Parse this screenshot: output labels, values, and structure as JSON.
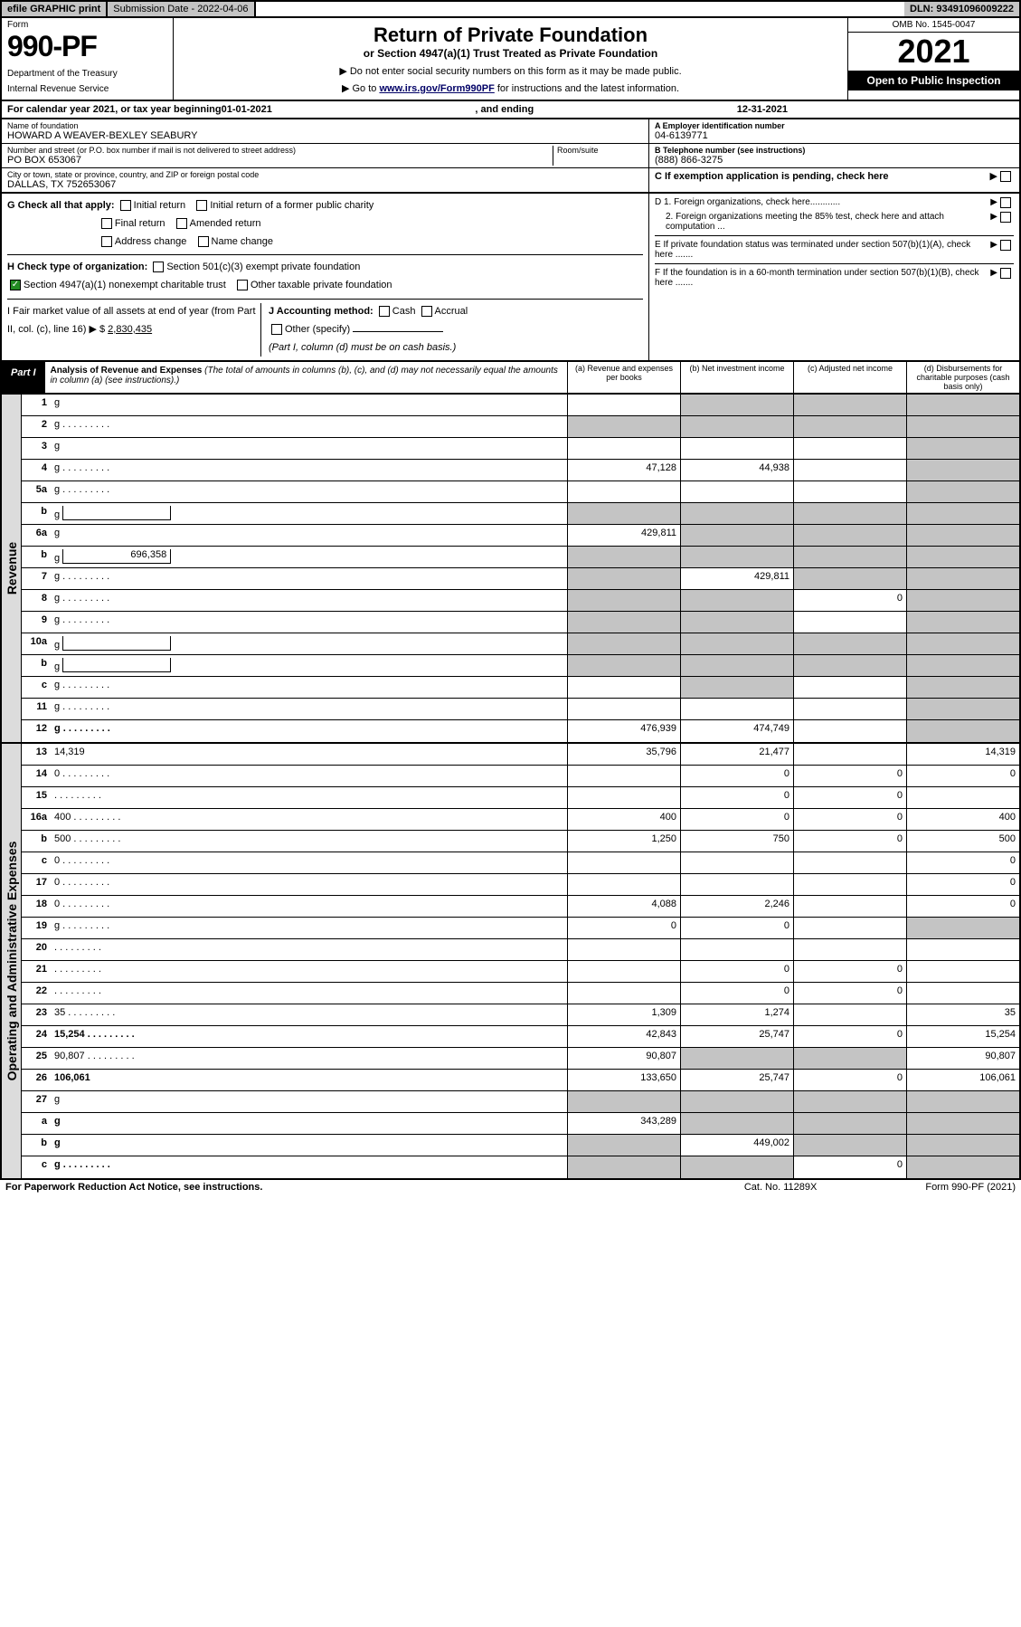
{
  "top": {
    "efile": "efile GRAPHIC print",
    "sub_label": "Submission Date - 2022-04-06",
    "dln": "DLN: 93491096009222"
  },
  "header": {
    "form": "Form",
    "num": "990-PF",
    "dept": "Department of the Treasury",
    "irs": "Internal Revenue Service",
    "title": "Return of Private Foundation",
    "subtitle": "or Section 4947(a)(1) Trust Treated as Private Foundation",
    "note1": "▶ Do not enter social security numbers on this form as it may be made public.",
    "note2_pre": "▶ Go to ",
    "note2_link": "www.irs.gov/Form990PF",
    "note2_post": " for instructions and the latest information.",
    "omb": "OMB No. 1545-0047",
    "year": "2021",
    "open": "Open to Public Inspection"
  },
  "cal": {
    "pre": "For calendar year 2021, or tax year beginning ",
    "begin": "01-01-2021",
    "mid": " , and ending ",
    "end": "12-31-2021"
  },
  "info_left": {
    "name_lbl": "Name of foundation",
    "name": "HOWARD A WEAVER-BEXLEY SEABURY",
    "addr_lbl": "Number and street (or P.O. box number if mail is not delivered to street address)",
    "addr": "PO BOX 653067",
    "room_lbl": "Room/suite",
    "city_lbl": "City or town, state or province, country, and ZIP or foreign postal code",
    "city": "DALLAS, TX  752653067"
  },
  "info_right": {
    "a_lbl": "A Employer identification number",
    "a_val": "04-6139771",
    "b_lbl": "B Telephone number (see instructions)",
    "b_val": "(888) 866-3275",
    "c_lbl": "C If exemption application is pending, check here",
    "d1": "D 1. Foreign organizations, check here............",
    "d2": "2. Foreign organizations meeting the 85% test, check here and attach computation ...",
    "e": "E If private foundation status was terminated under section 507(b)(1)(A), check here .......",
    "f": "F If the foundation is in a 60-month termination under section 507(b)(1)(B), check here ......."
  },
  "g": {
    "label": "G Check all that apply:",
    "o1": "Initial return",
    "o2": "Initial return of a former public charity",
    "o3": "Final return",
    "o4": "Amended return",
    "o5": "Address change",
    "o6": "Name change"
  },
  "h": {
    "label": "H Check type of organization:",
    "o1": "Section 501(c)(3) exempt private foundation",
    "o2": "Section 4947(a)(1) nonexempt charitable trust",
    "o3": "Other taxable private foundation"
  },
  "i": {
    "label": "I Fair market value of all assets at end of year (from Part II, col. (c), line 16) ▶ $",
    "val": "2,830,435"
  },
  "j": {
    "label": "J Accounting method:",
    "o1": "Cash",
    "o2": "Accrual",
    "o3": "Other (specify)",
    "note": "(Part I, column (d) must be on cash basis.)"
  },
  "part1": {
    "tag": "Part I",
    "title": "Analysis of Revenue and Expenses",
    "note": "(The total of amounts in columns (b), (c), and (d) may not necessarily equal the amounts in column (a) (see instructions).)",
    "col_a": "(a) Revenue and expenses per books",
    "col_b": "(b) Net investment income",
    "col_c": "(c) Adjusted net income",
    "col_d": "(d) Disbursements for charitable purposes (cash basis only)"
  },
  "side_rev": "Revenue",
  "side_exp": "Operating and Administrative Expenses",
  "rows_rev": [
    {
      "n": "1",
      "d": "g",
      "a": "",
      "b": "g",
      "c": "g"
    },
    {
      "n": "2",
      "d": "g",
      "a": "g",
      "b": "g",
      "c": "g",
      "bold": false,
      "dots": true
    },
    {
      "n": "3",
      "d": "g",
      "a": "",
      "b": "",
      "c": ""
    },
    {
      "n": "4",
      "d": "g",
      "a": "47,128",
      "b": "44,938",
      "c": "",
      "dots": true
    },
    {
      "n": "5a",
      "d": "g",
      "a": "",
      "b": "",
      "c": "",
      "dots": true
    },
    {
      "n": "b",
      "d": "g",
      "a": "g",
      "b": "g",
      "c": "g",
      "subbox": ""
    },
    {
      "n": "6a",
      "d": "g",
      "a": "429,811",
      "b": "g",
      "c": "g"
    },
    {
      "n": "b",
      "d": "g",
      "a": "g",
      "b": "g",
      "c": "g",
      "subbox": "696,358"
    },
    {
      "n": "7",
      "d": "g",
      "a": "g",
      "b": "429,811",
      "c": "g",
      "dots": true
    },
    {
      "n": "8",
      "d": "g",
      "a": "g",
      "b": "g",
      "c": "0",
      "dots": true
    },
    {
      "n": "9",
      "d": "g",
      "a": "g",
      "b": "g",
      "c": "",
      "dots": true
    },
    {
      "n": "10a",
      "d": "g",
      "a": "g",
      "b": "g",
      "c": "g",
      "subbox": ""
    },
    {
      "n": "b",
      "d": "g",
      "a": "g",
      "b": "g",
      "c": "g",
      "subbox": "",
      "dots": true
    },
    {
      "n": "c",
      "d": "g",
      "a": "",
      "b": "g",
      "c": "",
      "dots": true
    },
    {
      "n": "11",
      "d": "g",
      "a": "",
      "b": "",
      "c": "",
      "dots": true
    },
    {
      "n": "12",
      "d": "g",
      "a": "476,939",
      "b": "474,749",
      "c": "",
      "bold": true,
      "dots": true
    }
  ],
  "rows_exp": [
    {
      "n": "13",
      "d": "14,319",
      "a": "35,796",
      "b": "21,477",
      "c": ""
    },
    {
      "n": "14",
      "d": "0",
      "a": "",
      "b": "0",
      "c": "0",
      "dots": true
    },
    {
      "n": "15",
      "d": "",
      "a": "",
      "b": "0",
      "c": "0",
      "dots": true
    },
    {
      "n": "16a",
      "d": "400",
      "a": "400",
      "b": "0",
      "c": "0",
      "dots": true
    },
    {
      "n": "b",
      "d": "500",
      "a": "1,250",
      "b": "750",
      "c": "0",
      "dots": true
    },
    {
      "n": "c",
      "d": "0",
      "a": "",
      "b": "",
      "c": "",
      "dots": true
    },
    {
      "n": "17",
      "d": "0",
      "a": "",
      "b": "",
      "c": "",
      "dots": true
    },
    {
      "n": "18",
      "d": "0",
      "a": "4,088",
      "b": "2,246",
      "c": "",
      "dots": true
    },
    {
      "n": "19",
      "d": "g",
      "a": "0",
      "b": "0",
      "c": "",
      "dots": true
    },
    {
      "n": "20",
      "d": "",
      "a": "",
      "b": "",
      "c": "",
      "dots": true
    },
    {
      "n": "21",
      "d": "",
      "a": "",
      "b": "0",
      "c": "0",
      "dots": true
    },
    {
      "n": "22",
      "d": "",
      "a": "",
      "b": "0",
      "c": "0",
      "dots": true
    },
    {
      "n": "23",
      "d": "35",
      "a": "1,309",
      "b": "1,274",
      "c": "",
      "dots": true
    },
    {
      "n": "24",
      "d": "15,254",
      "a": "42,843",
      "b": "25,747",
      "c": "0",
      "bold": true,
      "dots": true
    },
    {
      "n": "25",
      "d": "90,807",
      "a": "90,807",
      "b": "g",
      "c": "g",
      "dots": true
    },
    {
      "n": "26",
      "d": "106,061",
      "a": "133,650",
      "b": "25,747",
      "c": "0",
      "bold": true
    },
    {
      "n": "27",
      "d": "g",
      "a": "g",
      "b": "g",
      "c": "g"
    },
    {
      "n": "a",
      "d": "g",
      "a": "343,289",
      "b": "g",
      "c": "g",
      "bold": true
    },
    {
      "n": "b",
      "d": "g",
      "a": "g",
      "b": "449,002",
      "c": "g",
      "bold": true
    },
    {
      "n": "c",
      "d": "g",
      "a": "g",
      "b": "g",
      "c": "0",
      "bold": true,
      "dots": true
    }
  ],
  "foot": {
    "l": "For Paperwork Reduction Act Notice, see instructions.",
    "m": "Cat. No. 11289X",
    "r": "Form 990-PF (2021)"
  }
}
